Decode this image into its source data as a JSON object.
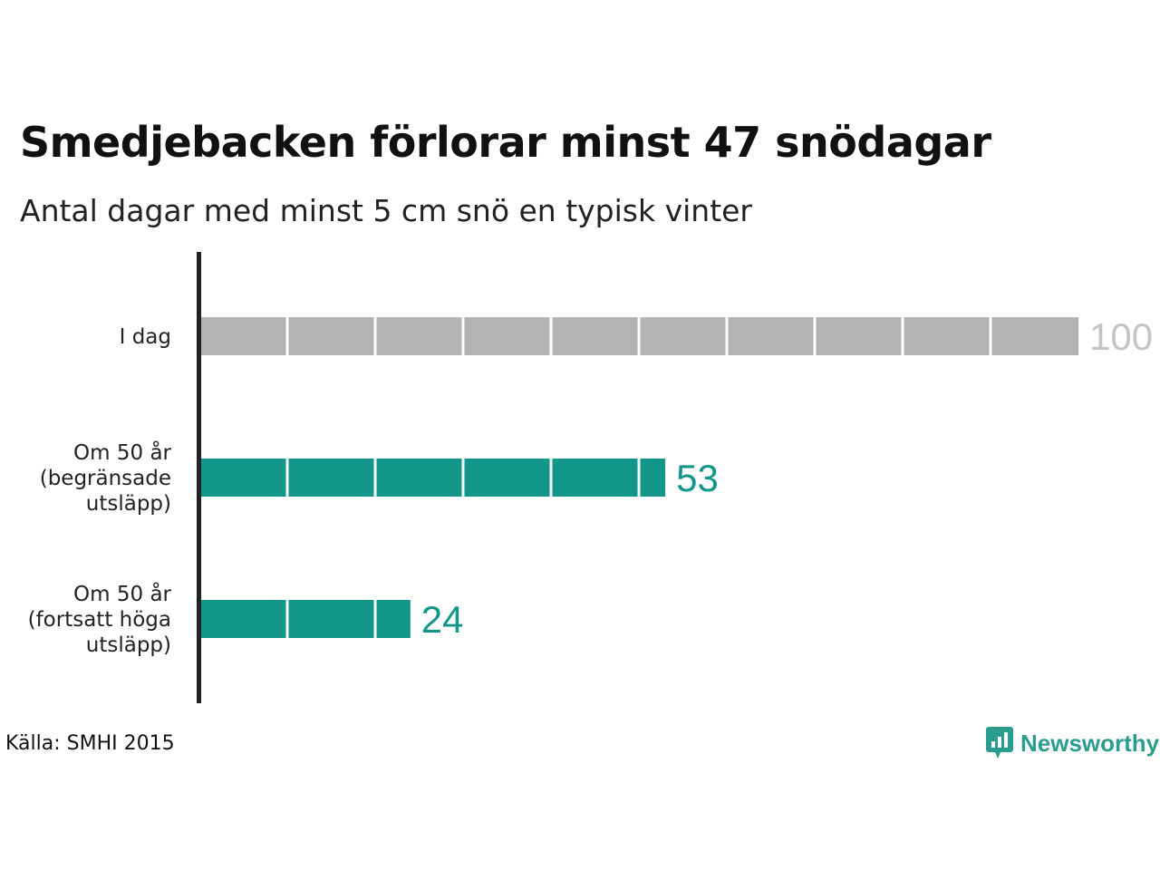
{
  "title": "Smedjebacken förlorar minst 47 snödagar",
  "subtitle": "Antal dagar med minst 5 cm snö en typisk vinter",
  "source": "Källa: SMHI 2015",
  "brand": {
    "name": "Newsworthy",
    "icon": "newsworthy-logo-icon"
  },
  "colors": {
    "today": "#b3b3b3",
    "future": "#13968a",
    "today_label": "#c4c4c4",
    "future_label": "#13968a",
    "axis": "#222222"
  },
  "chart_data": {
    "type": "bar",
    "orientation": "horizontal",
    "title": "Smedjebacken förlorar minst 47 snödagar",
    "subtitle": "Antal dagar med minst 5 cm snö en typisk vinter",
    "categories": [
      [
        "I dag"
      ],
      [
        "Om 50 år",
        "(begränsade",
        "utsläpp)"
      ],
      [
        "Om 50 år",
        "(fortsatt höga",
        "utsläpp)"
      ]
    ],
    "values": [
      100,
      53,
      24
    ],
    "value_labels": [
      "100",
      "53",
      "24"
    ],
    "xlim": [
      0,
      100
    ],
    "grid": false
  }
}
